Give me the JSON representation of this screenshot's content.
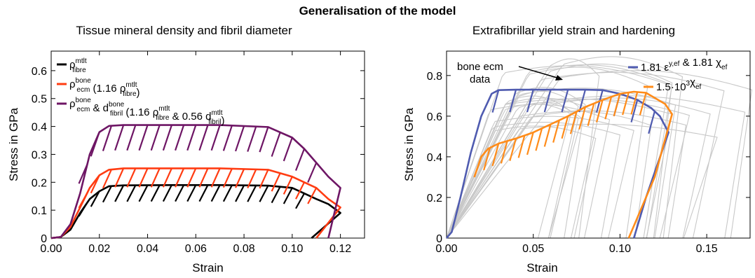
{
  "suptitle": "Generalisation of the model",
  "chart_data": [
    {
      "type": "line",
      "title": "Tissue mineral density and fibril diameter",
      "xlabel": "Strain",
      "ylabel": "Stress in GPa",
      "xlim": [
        0,
        0.13
      ],
      "ylim": [
        0,
        0.67
      ],
      "xticks": [
        "0.00",
        "0.02",
        "0.04",
        "0.06",
        "0.08",
        "0.10",
        "0.12"
      ],
      "yticks": [
        "0",
        "0.1",
        "0.2",
        "0.3",
        "0.4",
        "0.5",
        "0.6"
      ],
      "grid": false,
      "legend_position": "top-left",
      "series": [
        {
          "name_main": "ρ",
          "name_sub": "fibre",
          "name_sup": "mtlt",
          "name_tail": "",
          "color": "#000000",
          "points": [
            [
              0,
              0
            ],
            [
              0.004,
              0.004
            ],
            [
              0.008,
              0.03
            ],
            [
              0.012,
              0.09
            ],
            [
              0.016,
              0.14
            ],
            [
              0.02,
              0.168
            ],
            [
              0.024,
              0.186
            ],
            [
              0.03,
              0.189
            ],
            [
              0.05,
              0.19
            ],
            [
              0.07,
              0.19
            ],
            [
              0.09,
              0.188
            ],
            [
              0.1,
              0.18
            ],
            [
              0.105,
              0.16
            ],
            [
              0.11,
              0.14
            ],
            [
              0.115,
              0.122
            ],
            [
              0.12,
              0.09
            ],
            [
              0.108,
              0
            ]
          ],
          "hatch_x": [
            0.015,
            0.02,
            0.025,
            0.03,
            0.035,
            0.04,
            0.045,
            0.05,
            0.055,
            0.06,
            0.065,
            0.07,
            0.075,
            0.08,
            0.085,
            0.09,
            0.095,
            0.1,
            0.105
          ]
        },
        {
          "name_main": "ρ",
          "name_sub": "ecm",
          "name_sup": "bone",
          "name_tail": " (1.16 ρ",
          "name_sub2": "fibre",
          "name_sup2": "mtlt",
          "name_end": ")",
          "color": "#ff3c12",
          "points": [
            [
              0,
              0
            ],
            [
              0.004,
              0.004
            ],
            [
              0.008,
              0.04
            ],
            [
              0.012,
              0.11
            ],
            [
              0.016,
              0.18
            ],
            [
              0.02,
              0.225
            ],
            [
              0.024,
              0.245
            ],
            [
              0.03,
              0.25
            ],
            [
              0.05,
              0.25
            ],
            [
              0.07,
              0.25
            ],
            [
              0.09,
              0.245
            ],
            [
              0.1,
              0.22
            ],
            [
              0.105,
              0.2
            ],
            [
              0.11,
              0.18
            ],
            [
              0.115,
              0.14
            ],
            [
              0.12,
              0.11
            ],
            [
              0.11,
              0
            ]
          ],
          "hatch_x": [
            0.015,
            0.02,
            0.025,
            0.03,
            0.035,
            0.04,
            0.045,
            0.05,
            0.055,
            0.06,
            0.065,
            0.07,
            0.075,
            0.08,
            0.085,
            0.09,
            0.095,
            0.1,
            0.105,
            0.11
          ]
        },
        {
          "name_main": "ρ",
          "name_sub": "ecm",
          "name_sup": "bone",
          "name_tail": " & d",
          "name_sub2": "fibril",
          "name_sup2": "bone",
          "name_end": " (1.16 ρ",
          "name_sub3": "fibre",
          "name_sup3": "mtlt",
          "name_end2": " & 0.56 d",
          "name_sub4": "fibril",
          "name_sup4": "mtlt",
          "name_end3": ")",
          "color": "#6e1665",
          "points": [
            [
              0,
              0
            ],
            [
              0.004,
              0.004
            ],
            [
              0.008,
              0.05
            ],
            [
              0.012,
              0.16
            ],
            [
              0.016,
              0.3
            ],
            [
              0.02,
              0.38
            ],
            [
              0.024,
              0.402
            ],
            [
              0.03,
              0.405
            ],
            [
              0.05,
              0.405
            ],
            [
              0.07,
              0.405
            ],
            [
              0.09,
              0.398
            ],
            [
              0.1,
              0.36
            ],
            [
              0.105,
              0.32
            ],
            [
              0.11,
              0.27
            ],
            [
              0.115,
              0.22
            ],
            [
              0.12,
              0.18
            ],
            [
              0.115,
              0
            ]
          ],
          "hatch_x": [
            0.015,
            0.02,
            0.025,
            0.03,
            0.035,
            0.04,
            0.045,
            0.05,
            0.055,
            0.06,
            0.065,
            0.07,
            0.075,
            0.08,
            0.085,
            0.09,
            0.095,
            0.1,
            0.105,
            0.11
          ]
        }
      ]
    },
    {
      "type": "line",
      "title": "Extrafibrillar yield strain and hardening",
      "xlabel": "Strain",
      "ylabel": "Stress in GPa",
      "xlim": [
        0,
        0.175
      ],
      "ylim": [
        0,
        0.92
      ],
      "xticks": [
        "0.00",
        "0.05",
        "0.10",
        "0.15"
      ],
      "yticks": [
        "0",
        "0.2",
        "0.4",
        "0.6",
        "0.8"
      ],
      "grid": false,
      "legend_position": "top-right",
      "annotation": [
        "bone ecm",
        "data"
      ],
      "series": [
        {
          "name_main": "1.81 ε",
          "name_sup": "y,ef",
          "name_tail": " & 1.81 χ",
          "name_sub": "ef",
          "color": "#4f5bb0",
          "points": [
            [
              0,
              0
            ],
            [
              0.003,
              0.03
            ],
            [
              0.008,
              0.2
            ],
            [
              0.014,
              0.42
            ],
            [
              0.02,
              0.6
            ],
            [
              0.026,
              0.71
            ],
            [
              0.03,
              0.728
            ],
            [
              0.04,
              0.73
            ],
            [
              0.06,
              0.73
            ],
            [
              0.08,
              0.73
            ],
            [
              0.09,
              0.728
            ],
            [
              0.1,
              0.71
            ],
            [
              0.11,
              0.68
            ],
            [
              0.118,
              0.64
            ],
            [
              0.123,
              0.6
            ],
            [
              0.128,
              0.52
            ],
            [
              0.115,
              0.2
            ],
            [
              0.108,
              0
            ]
          ],
          "hatch_x": [
            0.03,
            0.04,
            0.05,
            0.06,
            0.07,
            0.08,
            0.09,
            0.1,
            0.11,
            0.12
          ]
        },
        {
          "name_main": "1.5·10",
          "name_sup": "3",
          "name_tail": "χ",
          "name_sub": "ef",
          "color": "#ff8c1a",
          "points": [
            [
              0.016,
              0.3
            ],
            [
              0.02,
              0.4
            ],
            [
              0.024,
              0.44
            ],
            [
              0.03,
              0.465
            ],
            [
              0.04,
              0.49
            ],
            [
              0.05,
              0.52
            ],
            [
              0.06,
              0.56
            ],
            [
              0.07,
              0.6
            ],
            [
              0.08,
              0.645
            ],
            [
              0.09,
              0.68
            ],
            [
              0.1,
              0.71
            ],
            [
              0.108,
              0.72
            ],
            [
              0.115,
              0.715
            ],
            [
              0.12,
              0.69
            ],
            [
              0.126,
              0.66
            ],
            [
              0.13,
              0.61
            ],
            [
              0.12,
              0.3
            ],
            [
              0.105,
              0
            ]
          ],
          "hatch_x": [
            0.025,
            0.03,
            0.035,
            0.04,
            0.045,
            0.05,
            0.055,
            0.06,
            0.065,
            0.07,
            0.075,
            0.08,
            0.085,
            0.09,
            0.095,
            0.1,
            0.105,
            0.11,
            0.115
          ]
        }
      ]
    }
  ]
}
